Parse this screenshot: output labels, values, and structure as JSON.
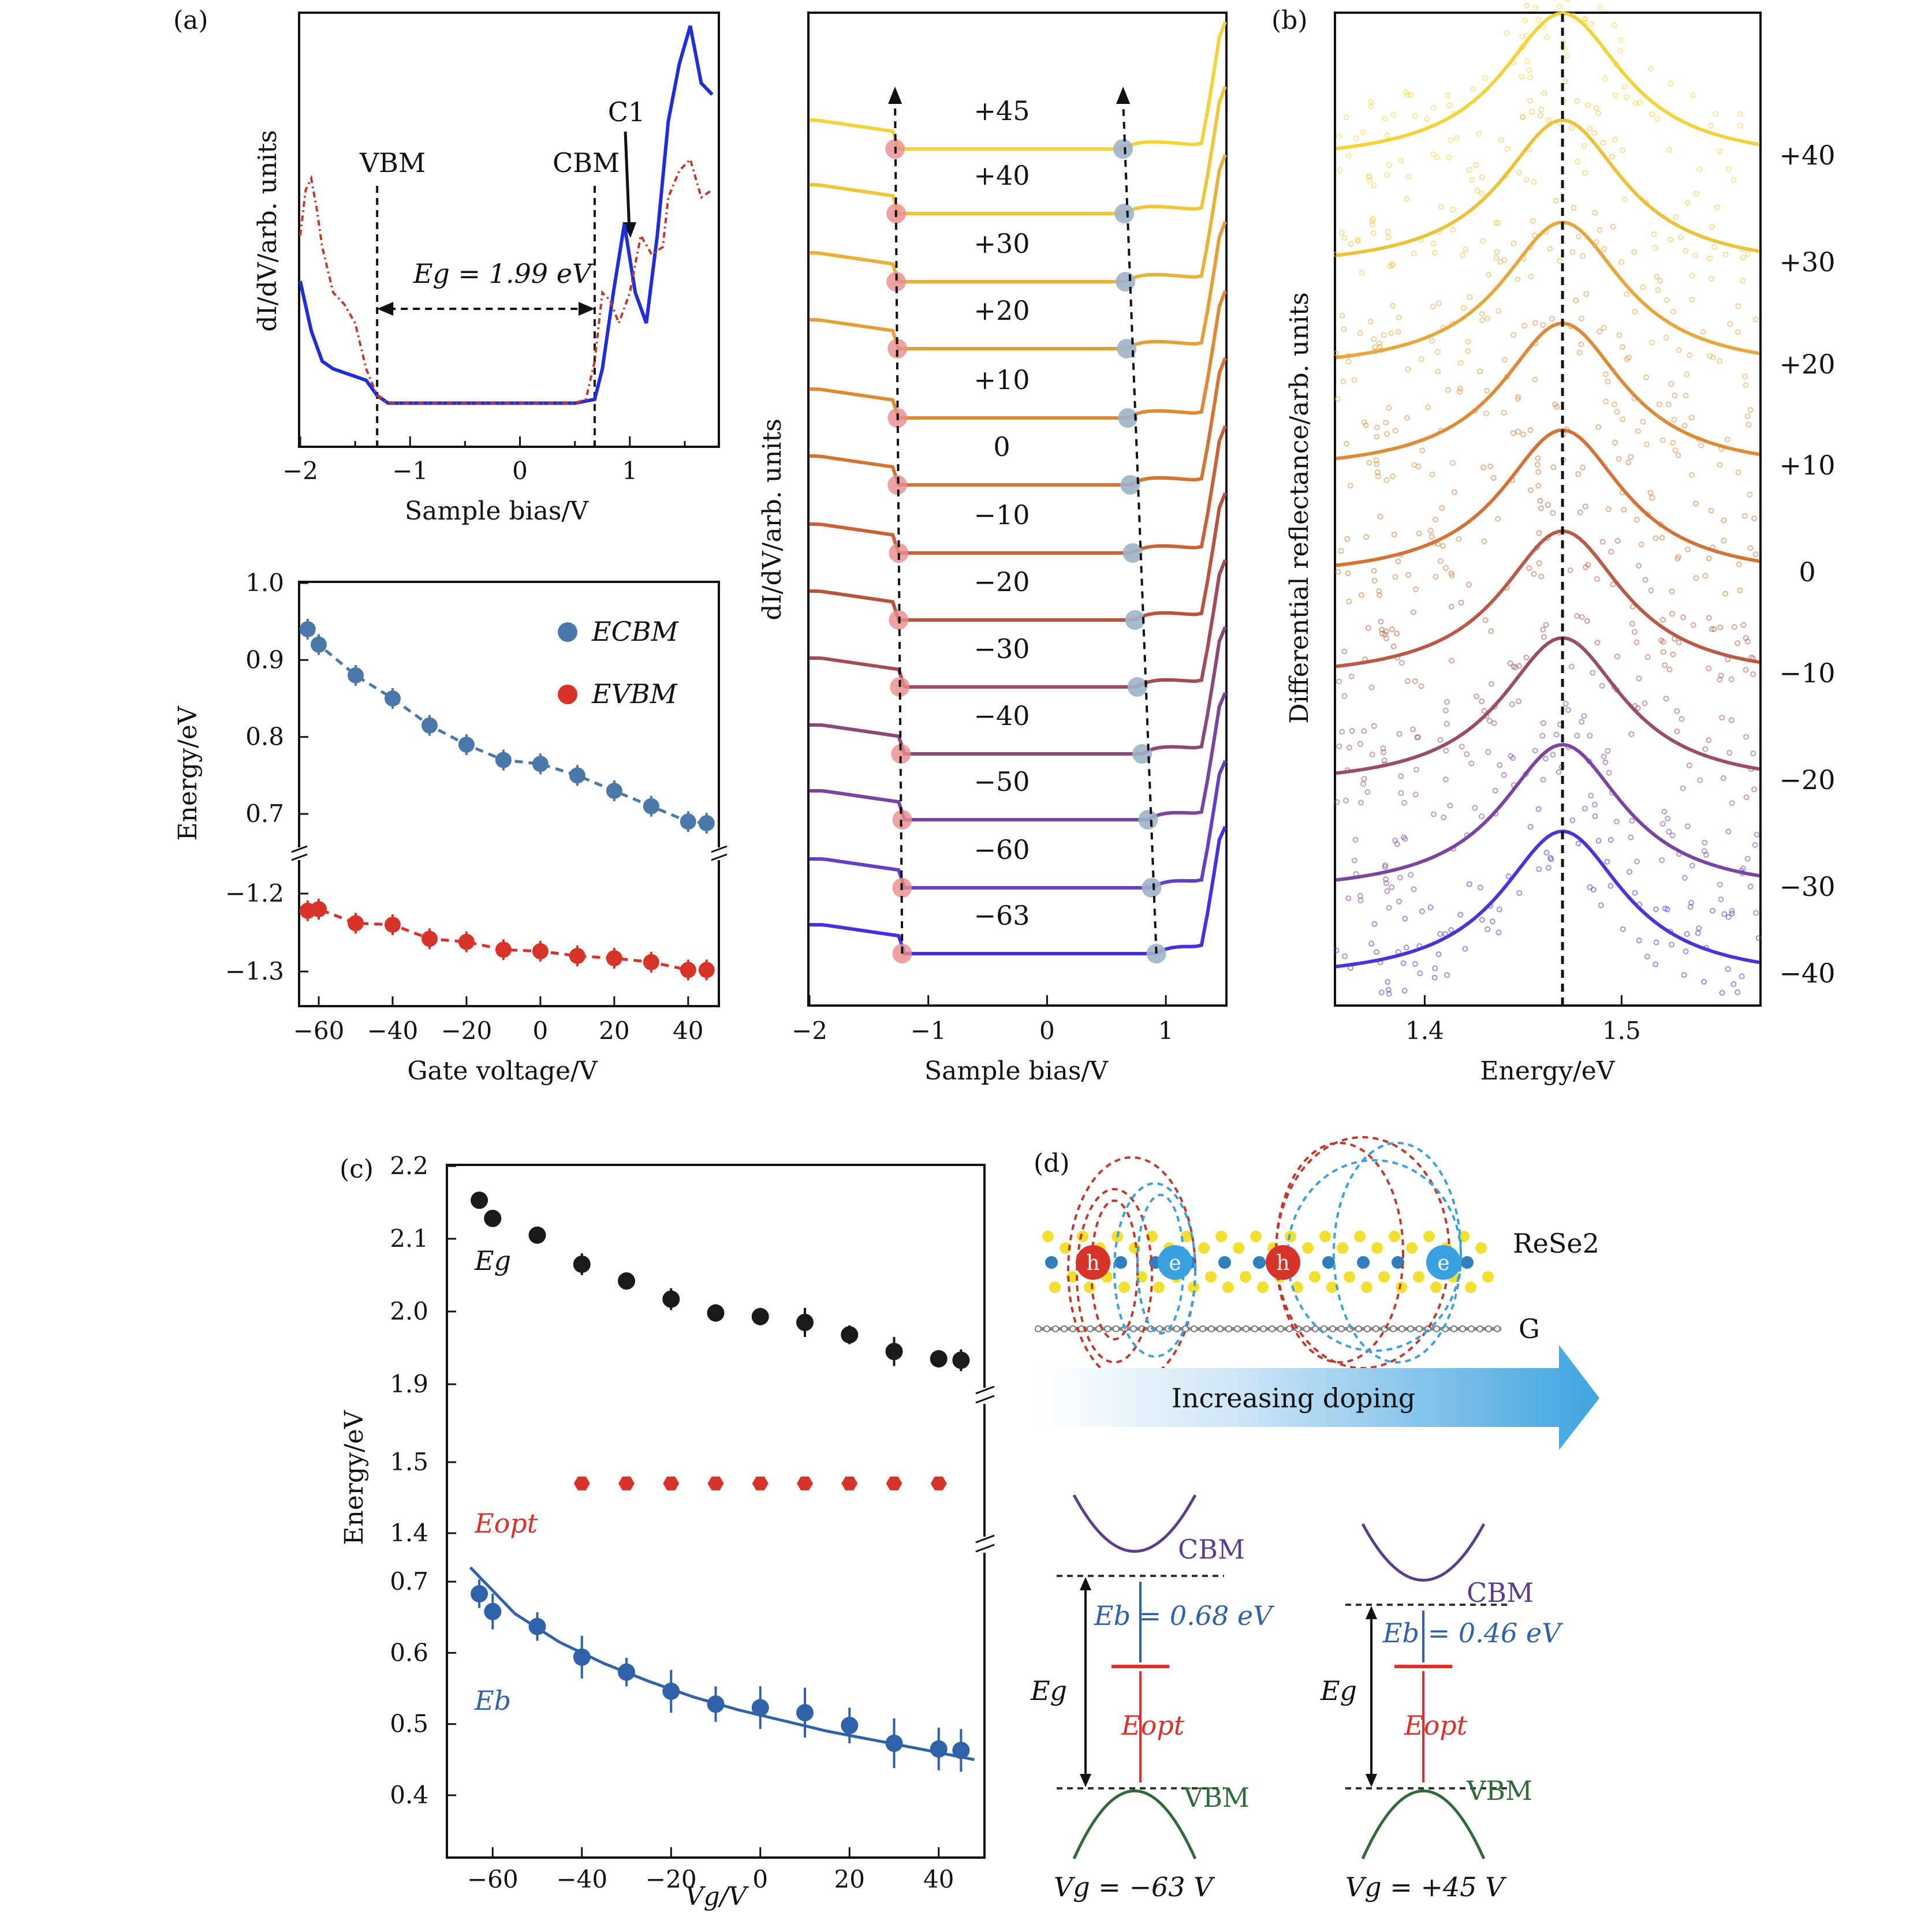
{
  "panel_labels": {
    "a": "(a)",
    "b": "(b)",
    "c": "(c)",
    "d": "(d)"
  },
  "colors": {
    "ecbm": "#4a78a8",
    "evbm": "#d6342b",
    "eg": "#1a1a1a",
    "eopt": "#d6342b",
    "eb": "#2f62a8",
    "sts_blue": "#1f2ed8",
    "sts_red": "#c0392b"
  },
  "chart_data": [
    {
      "id": "a_top",
      "type": "line",
      "xlabel": "Sample bias/V",
      "ylabel": "dI/dV/arb. units",
      "xlim": [
        -2,
        1.8
      ],
      "xticks": [
        -2,
        -1,
        0,
        1
      ],
      "annotations": {
        "vbm": "VBM",
        "cbm": "CBM",
        "eg": "Eg = 1.99 eV",
        "c1": "C1"
      },
      "vbm_x": -1.3,
      "cbm_x": 0.68,
      "series": [
        {
          "color": "blue",
          "x": [
            -2.0,
            -1.9,
            -1.8,
            -1.7,
            -1.6,
            -1.5,
            -1.4,
            -1.3,
            -1.2,
            -0.5,
            0.0,
            0.5,
            0.68,
            0.75,
            0.85,
            0.95,
            1.05,
            1.15,
            1.25,
            1.35,
            1.45,
            1.55,
            1.65,
            1.75
          ],
          "y": [
            0.33,
            0.2,
            0.12,
            0.1,
            0.09,
            0.08,
            0.07,
            0.03,
            0.01,
            0.01,
            0.01,
            0.01,
            0.02,
            0.1,
            0.3,
            0.48,
            0.3,
            0.22,
            0.45,
            0.75,
            0.9,
            1.0,
            0.85,
            0.82
          ]
        },
        {
          "color": "red",
          "x": [
            -2.0,
            -1.95,
            -1.9,
            -1.85,
            -1.8,
            -1.7,
            -1.6,
            -1.5,
            -1.4,
            -1.3,
            -1.2,
            -0.5,
            0.0,
            0.5,
            0.6,
            0.68,
            0.75,
            0.82,
            0.9,
            1.0,
            1.1,
            1.2,
            1.3,
            1.35,
            1.45,
            1.55,
            1.65,
            1.75
          ],
          "y": [
            0.45,
            0.57,
            0.6,
            0.52,
            0.42,
            0.3,
            0.27,
            0.22,
            0.1,
            0.03,
            0.01,
            0.01,
            0.01,
            0.01,
            0.02,
            0.12,
            0.3,
            0.28,
            0.22,
            0.3,
            0.45,
            0.4,
            0.42,
            0.55,
            0.62,
            0.65,
            0.55,
            0.57
          ]
        }
      ]
    },
    {
      "id": "a_bottom",
      "type": "scatter",
      "xlabel": "Gate voltage/V",
      "ylabel": "Energy/eV",
      "xlim": [
        -65,
        48
      ],
      "xticks": [
        -60,
        -40,
        -20,
        0,
        20,
        40
      ],
      "yticks_upper": [
        1.0,
        0.9,
        0.8,
        0.7
      ],
      "yticks_lower": [
        -1.2,
        -1.3
      ],
      "ylim_upper": [
        0.66,
        1.0
      ],
      "ylim_lower": [
        -1.35,
        -1.16
      ],
      "legend": {
        "ecbm": "ECBM",
        "evbm": "EVBM"
      },
      "x": [
        -63,
        -60,
        -50,
        -40,
        -30,
        -20,
        -10,
        0,
        10,
        20,
        30,
        40,
        45
      ],
      "series": [
        {
          "name": "ECBM",
          "values": [
            0.94,
            0.92,
            0.88,
            0.85,
            0.815,
            0.79,
            0.77,
            0.765,
            0.75,
            0.73,
            0.71,
            0.69,
            0.688
          ]
        },
        {
          "name": "EVBM",
          "values": [
            -1.222,
            -1.22,
            -1.238,
            -1.24,
            -1.258,
            -1.262,
            -1.272,
            -1.274,
            -1.28,
            -1.283,
            -1.288,
            -1.298,
            -1.298
          ]
        }
      ]
    },
    {
      "id": "a_stack",
      "type": "line",
      "xlabel": "Sample bias/V",
      "ylabel": "dI/dV/arb. units",
      "xlim": [
        -2,
        1.5
      ],
      "xticks": [
        -2,
        -1,
        0,
        1
      ],
      "gate_labels": [
        "+45",
        "+40",
        "+30",
        "+20",
        "+10",
        "0",
        "−10",
        "−20",
        "−30",
        "−40",
        "−50",
        "−60",
        "−63"
      ],
      "gate_values": [
        45,
        40,
        30,
        20,
        10,
        0,
        -10,
        -20,
        -30,
        -40,
        -50,
        -60,
        -63
      ],
      "vbm_positions": [
        -1.28,
        -1.27,
        -1.27,
        -1.26,
        -1.26,
        -1.26,
        -1.25,
        -1.25,
        -1.24,
        -1.23,
        -1.22,
        -1.22,
        -1.22
      ],
      "cbm_positions": [
        0.64,
        0.65,
        0.66,
        0.67,
        0.68,
        0.7,
        0.72,
        0.74,
        0.76,
        0.8,
        0.85,
        0.88,
        0.92
      ]
    },
    {
      "id": "b",
      "type": "scatter",
      "xlabel": "Energy/eV",
      "ylabel": "Differential reflectance/arb. units",
      "xlim": [
        1.355,
        1.57
      ],
      "xticks": [
        1.4,
        1.5
      ],
      "peak_energy": 1.47,
      "labels": [
        "+40",
        "+30",
        "+20",
        "+10",
        "0",
        "−10",
        "−20",
        "−30",
        "−40"
      ],
      "gate_values": [
        40,
        30,
        20,
        10,
        0,
        -10,
        -20,
        -30,
        -40
      ]
    },
    {
      "id": "c",
      "type": "scatter",
      "xlabel": "Vg/V",
      "ylabel": "Energy/eV",
      "xlim": [
        -70,
        50
      ],
      "xticks": [
        -60,
        -40,
        -20,
        0,
        20,
        40
      ],
      "yticks_top": [
        2.2,
        2.1,
        2.0,
        1.9
      ],
      "yticks_mid": [
        1.5,
        1.4
      ],
      "yticks_bot": [
        0.7,
        0.6,
        0.5,
        0.4
      ],
      "labels": {
        "eg": "Eg",
        "eopt": "Eopt",
        "eb": "Eb"
      },
      "series": [
        {
          "name": "Eg",
          "x": [
            -63,
            -60,
            -50,
            -40,
            -30,
            -20,
            -10,
            0,
            10,
            20,
            30,
            40,
            45
          ],
          "values": [
            2.153,
            2.128,
            2.105,
            2.065,
            2.042,
            2.017,
            1.998,
            1.993,
            1.985,
            1.968,
            1.945,
            1.935,
            1.933
          ],
          "errors": [
            0.008,
            0.01,
            0.01,
            0.015,
            0.01,
            0.015,
            0.012,
            0.012,
            0.02,
            0.013,
            0.02,
            0.012,
            0.015
          ]
        },
        {
          "name": "Eopt",
          "x": [
            -40,
            -30,
            -20,
            -10,
            0,
            10,
            20,
            30,
            40
          ],
          "values": [
            1.47,
            1.47,
            1.47,
            1.47,
            1.47,
            1.47,
            1.47,
            1.47,
            1.47
          ]
        },
        {
          "name": "Eb",
          "x": [
            -63,
            -60,
            -50,
            -40,
            -30,
            -20,
            -10,
            0,
            10,
            20,
            30,
            40,
            45
          ],
          "values": [
            0.683,
            0.658,
            0.637,
            0.594,
            0.573,
            0.546,
            0.528,
            0.523,
            0.516,
            0.498,
            0.473,
            0.465,
            0.463
          ],
          "errors": [
            0.02,
            0.025,
            0.02,
            0.03,
            0.02,
            0.03,
            0.025,
            0.03,
            0.035,
            0.025,
            0.035,
            0.03,
            0.03
          ]
        }
      ],
      "fit_curve": {
        "x": [
          -65,
          -55,
          -45,
          -35,
          -25,
          -15,
          -5,
          5,
          15,
          25,
          35,
          48
        ],
        "values": [
          0.72,
          0.655,
          0.615,
          0.585,
          0.56,
          0.538,
          0.52,
          0.505,
          0.49,
          0.478,
          0.466,
          0.45
        ]
      }
    }
  ],
  "panel_d": {
    "material": "ReSe2",
    "substrate": "G",
    "arrow_text": "Increasing doping",
    "hole": "h",
    "electron": "e",
    "left": {
      "cbm": "CBM",
      "vbm": "VBM",
      "eb": "Eb = 0.68 eV",
      "eg": "Eg",
      "eopt": "Eopt",
      "vg": "Vg = −63 V"
    },
    "right": {
      "cbm": "CBM",
      "vbm": "VBM",
      "eb": "Eb = 0.46 eV",
      "eg": "Eg",
      "eopt": "Eopt",
      "vg": "Vg = +45 V"
    }
  }
}
